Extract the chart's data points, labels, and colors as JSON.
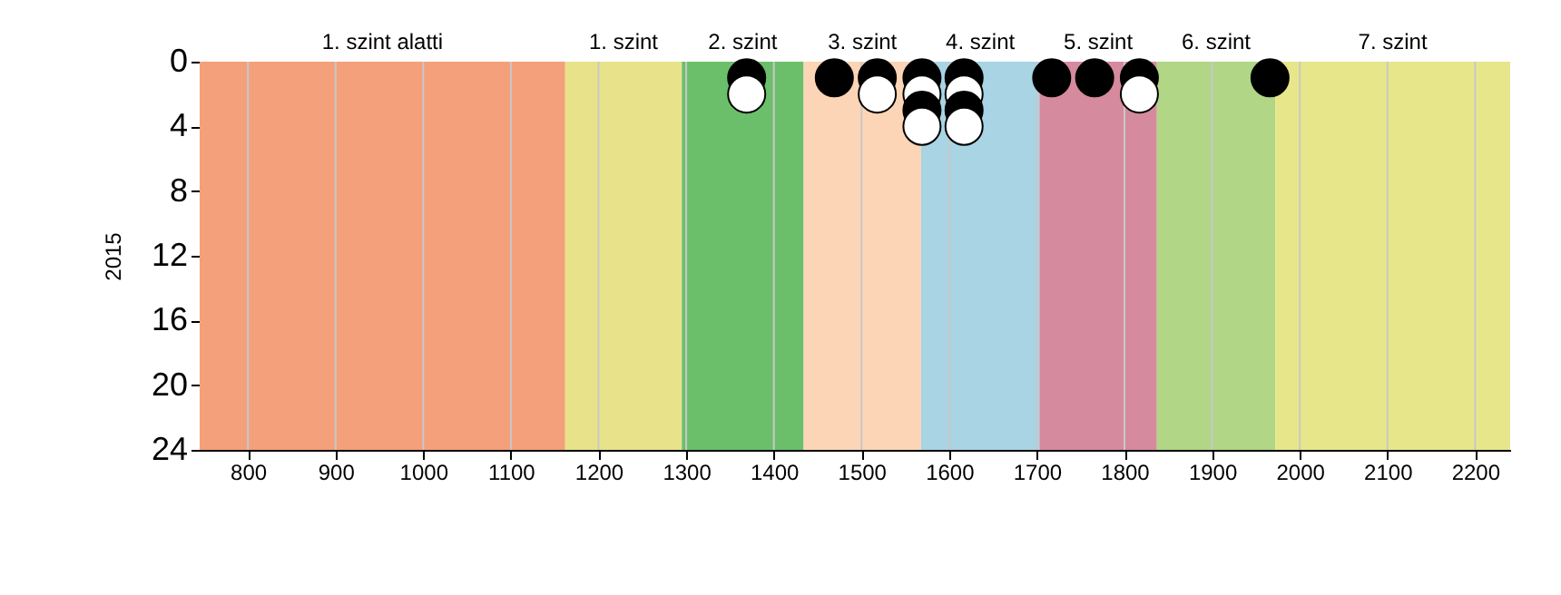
{
  "chart_data": {
    "type": "scatter",
    "ylabel": "2015",
    "xlim": [
      745,
      2240
    ],
    "xticks": [
      800,
      900,
      1000,
      1100,
      1200,
      1300,
      1400,
      1500,
      1600,
      1700,
      1800,
      1900,
      2000,
      2100,
      2200
    ],
    "ylim": [
      24,
      0
    ],
    "yticks": [
      0,
      4,
      8,
      12,
      16,
      20,
      24
    ],
    "grid": "x",
    "marker": "circle",
    "bands": [
      {
        "axis": "x",
        "from": 745,
        "to": 1162,
        "label": "1. szint alatti",
        "color": "#f4a07b"
      },
      {
        "axis": "x",
        "from": 1162,
        "to": 1295,
        "label": "1. szint",
        "color": "#e8e38b"
      },
      {
        "axis": "x",
        "from": 1295,
        "to": 1434,
        "label": "2. szint",
        "color": "#6bbf6b"
      },
      {
        "axis": "x",
        "from": 1434,
        "to": 1568,
        "label": "3. szint",
        "color": "#fbd5b5"
      },
      {
        "axis": "x",
        "from": 1568,
        "to": 1703,
        "label": "4. szint",
        "color": "#a8d4e4"
      },
      {
        "axis": "x",
        "from": 1703,
        "to": 1837,
        "label": "5. szint",
        "color": "#d68a9e"
      },
      {
        "axis": "x",
        "from": 1837,
        "to": 1972,
        "label": "6. szint",
        "color": "#b0d686"
      },
      {
        "axis": "x",
        "from": 1972,
        "to": 2240,
        "label": "7. szint",
        "color": "#e8e68a"
      }
    ],
    "series": [
      {
        "color": "#000000",
        "x": [
          1369,
          1469,
          1518,
          1569,
          1569,
          1617,
          1617,
          1717,
          1766,
          1817,
          1966
        ],
        "values": [
          1,
          1,
          1,
          1,
          3,
          1,
          3,
          1,
          1,
          1,
          1
        ]
      },
      {
        "color": "#ffffff",
        "x": [
          1369,
          1518,
          1569,
          1569,
          1617,
          1617,
          1817
        ],
        "values": [
          2,
          2,
          2,
          4,
          2,
          4,
          2
        ]
      }
    ]
  }
}
